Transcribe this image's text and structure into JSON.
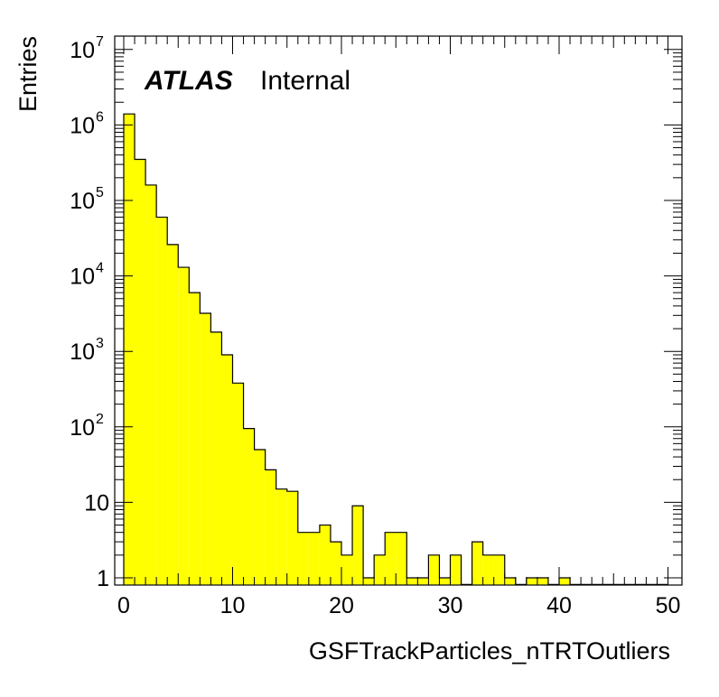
{
  "chart_data": {
    "type": "bar",
    "histogram": true,
    "title": "",
    "xlabel": "GSFTrackParticles_nTRTOutliers",
    "ylabel": "Entries",
    "xlim": [
      0,
      50
    ],
    "ylim": [
      0.9,
      10000000
    ],
    "log_y": true,
    "grid": false,
    "legend": null,
    "fill_color": "#ffff00",
    "line_color": "#000000",
    "annotation": {
      "bold_italic": "ATLAS",
      "regular": "Internal"
    },
    "bin_width": 1,
    "bin_edges_start": 0,
    "values": [
      1400000,
      350000,
      160000,
      60000,
      26000,
      13000,
      6000,
      3200,
      1800,
      900,
      380,
      95,
      50,
      27,
      15,
      14,
      4,
      4,
      5,
      3,
      2,
      9,
      1,
      2,
      4,
      4,
      1,
      1,
      2,
      1,
      2,
      0,
      3,
      2,
      2,
      1,
      0,
      1,
      1,
      0,
      1,
      0,
      0,
      0,
      0,
      0,
      0,
      0,
      0,
      0
    ],
    "x_ticks": [
      0,
      10,
      20,
      30,
      40,
      50
    ],
    "x_tick_labels": [
      "0",
      "10",
      "20",
      "30",
      "40",
      "50"
    ],
    "y_ticks": [
      1,
      10,
      100,
      1000,
      10000,
      100000,
      1000000,
      10000000
    ],
    "y_tick_labels": [
      {
        "base": "1",
        "exp": ""
      },
      {
        "base": "10",
        "exp": ""
      },
      {
        "base": "10",
        "exp": "2"
      },
      {
        "base": "10",
        "exp": "3"
      },
      {
        "base": "10",
        "exp": "4"
      },
      {
        "base": "10",
        "exp": "5"
      },
      {
        "base": "10",
        "exp": "6"
      },
      {
        "base": "10",
        "exp": "7"
      }
    ]
  }
}
